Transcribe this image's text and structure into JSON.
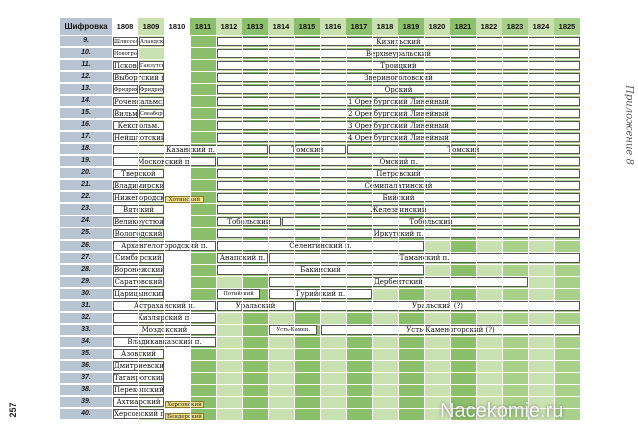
{
  "header": {
    "cipher_label": "Шифровка",
    "years": [
      "1808",
      "1809",
      "1810",
      "1811",
      "1812",
      "1813",
      "1814",
      "1815",
      "1816",
      "1817",
      "1818",
      "1819",
      "1820",
      "1821",
      "1822",
      "1823",
      "1824",
      "1825"
    ]
  },
  "colors": {
    "header_white": "#ffffff",
    "header_light": "#c9e0b0",
    "header_dark": "#8cbf6b",
    "col_light": "#c9e0b0",
    "col_mid": "#a9d08a",
    "col_dark": "#8cbf6b",
    "row_label": "#b9c4d2",
    "flag": "#f3e48a"
  },
  "year_shading": [
    "white",
    "light",
    "white",
    "dark",
    "light",
    "dark",
    "light",
    "dark",
    "light",
    "dark",
    "light",
    "dark",
    "light",
    "dark",
    "light",
    "mid",
    "light",
    "mid"
  ],
  "rows": [
    {
      "code": "9.",
      "bars": [
        {
          "text": "Шлиссельбург.",
          "from": 0,
          "to": 1,
          "small": true
        },
        {
          "text": "Аландск. п.",
          "from": 1,
          "to": 2,
          "small": true
        },
        {
          "text": "Кизильский",
          "from": 4,
          "to": 18
        }
      ]
    },
    {
      "code": "10.",
      "bars": [
        {
          "text": "Новогродский",
          "from": 0,
          "to": 1,
          "small": true
        },
        {
          "text": "Верхнеуральский",
          "from": 4,
          "to": 18
        }
      ]
    },
    {
      "code": "11.",
      "bars": [
        {
          "text": "Псковский",
          "from": 0,
          "to": 1
        },
        {
          "text": "Ганзутск.",
          "from": 1,
          "to": 2,
          "small": true
        },
        {
          "text": "Троицкий",
          "from": 4,
          "to": 18
        }
      ]
    },
    {
      "code": "12.",
      "bars": [
        {
          "text": "Выборгский п.",
          "from": 0,
          "to": 2
        },
        {
          "text": "Звериноголовский",
          "from": 4,
          "to": 18
        }
      ]
    },
    {
      "code": "13.",
      "bars": [
        {
          "text": "Фридрихсг. п.",
          "from": 0,
          "to": 1,
          "small": true
        },
        {
          "text": "Фридрих.",
          "from": 1,
          "to": 2,
          "small": true
        },
        {
          "text": "Орский",
          "from": 4,
          "to": 18
        }
      ]
    },
    {
      "code": "14.",
      "bars": [
        {
          "text": "Роченсальмский п.",
          "from": 0,
          "to": 2
        },
        {
          "text": "1 Оренбургский Линейный",
          "from": 4,
          "to": 18
        }
      ]
    },
    {
      "code": "15.",
      "bars": [
        {
          "text": "Вильманстр.",
          "from": 0,
          "to": 1
        },
        {
          "text": "Свеаборг. п.",
          "from": 1,
          "to": 2,
          "small": true
        },
        {
          "text": "2 Оренбургский Линейный",
          "from": 4,
          "to": 18
        }
      ]
    },
    {
      "code": "16.",
      "bars": [
        {
          "text": "Кексгольм.",
          "from": 0,
          "to": 2
        },
        {
          "text": "3 Оренбургский Линейный",
          "from": 4,
          "to": 18
        }
      ]
    },
    {
      "code": "17.",
      "bars": [
        {
          "text": "Нейшлотский",
          "from": 0,
          "to": 2
        },
        {
          "text": "4 Оренбургский Линейный",
          "from": 4,
          "to": 18
        }
      ]
    },
    {
      "code": "18.",
      "bars": [
        {
          "text": "Казанский п.",
          "from": 0,
          "to": 6
        },
        {
          "text": "Томский",
          "from": 6,
          "to": 9
        },
        {
          "text": "Томский",
          "from": 9,
          "to": 18
        }
      ]
    },
    {
      "code": "19.",
      "bars": [
        {
          "text": "Московский п.",
          "from": 0,
          "to": 4
        },
        {
          "text": "Омский п.",
          "from": 4,
          "to": 18
        }
      ]
    },
    {
      "code": "20.",
      "bars": [
        {
          "text": "Тверской",
          "from": 0,
          "to": 2
        },
        {
          "text": "Петровский",
          "from": 4,
          "to": 18
        }
      ]
    },
    {
      "code": "21.",
      "bars": [
        {
          "text": "Владимирский",
          "from": 0,
          "to": 2
        },
        {
          "text": "Семипалатинский",
          "from": 4,
          "to": 18
        }
      ]
    },
    {
      "code": "22.",
      "bars": [
        {
          "text": "Нижегородский",
          "from": 0,
          "to": 2
        },
        {
          "text": "Бийский",
          "from": 4,
          "to": 18
        }
      ],
      "flag": {
        "text": "Хотинский",
        "at": 2
      }
    },
    {
      "code": "23.",
      "bars": [
        {
          "text": "Вятский",
          "from": 0,
          "to": 2
        },
        {
          "text": "Железнинский",
          "from": 4,
          "to": 18
        }
      ]
    },
    {
      "code": "24.",
      "bars": [
        {
          "text": "Великоустюжский",
          "from": 0,
          "to": 2
        },
        {
          "text": "Тобольский",
          "from": 4,
          "to": 6.5
        },
        {
          "text": "Тобольский",
          "from": 6.5,
          "to": 18
        }
      ]
    },
    {
      "code": "25.",
      "bars": [
        {
          "text": "Вологодский",
          "from": 0,
          "to": 2
        },
        {
          "text": "Иркутский п.",
          "from": 4,
          "to": 18
        }
      ]
    },
    {
      "code": "26.",
      "bars": [
        {
          "text": "Архангелогородский п.",
          "from": 0,
          "to": 4
        },
        {
          "text": "Селенгинский п.",
          "from": 4,
          "to": 12
        }
      ]
    },
    {
      "code": "27.",
      "bars": [
        {
          "text": "Симбирский",
          "from": 0,
          "to": 2
        },
        {
          "text": "Анапский п.",
          "from": 4,
          "to": 6
        },
        {
          "text": "Таманский п.",
          "from": 6,
          "to": 18
        }
      ]
    },
    {
      "code": "28.",
      "bars": [
        {
          "text": "Воронежский",
          "from": 0,
          "to": 2
        },
        {
          "text": "Бакинский",
          "from": 4,
          "to": 12
        }
      ]
    },
    {
      "code": "29.",
      "bars": [
        {
          "text": "Саратовский",
          "from": 0,
          "to": 2
        },
        {
          "text": "Дербентский",
          "from": 6,
          "to": 16
        }
      ]
    },
    {
      "code": "30.",
      "bars": [
        {
          "text": "Царицынский",
          "from": 0,
          "to": 2
        },
        {
          "text": "Потийский",
          "from": 4,
          "to": 5.7,
          "small": true
        },
        {
          "text": "Гурийский п.",
          "from": 6,
          "to": 10
        }
      ]
    },
    {
      "code": "31.",
      "bars": [
        {
          "text": "Астраханский п.",
          "from": 0,
          "to": 4
        },
        {
          "text": "Уральский",
          "from": 4,
          "to": 7
        },
        {
          "text": "Уральский (?)",
          "from": 7,
          "to": 18
        }
      ]
    },
    {
      "code": "32.",
      "bars": [
        {
          "text": "Кизлярский п.",
          "from": 0,
          "to": 4
        }
      ]
    },
    {
      "code": "33.",
      "bars": [
        {
          "text": "Моздокский",
          "from": 0,
          "to": 4
        },
        {
          "text": "Усть-Камен.",
          "from": 6,
          "to": 7.9,
          "small": true
        },
        {
          "text": "Усть-Каменогорский (?)",
          "from": 8,
          "to": 18
        }
      ]
    },
    {
      "code": "34.",
      "bars": [
        {
          "text": "Владикавказский п.",
          "from": 0,
          "to": 4
        }
      ]
    },
    {
      "code": "35.",
      "bars": [
        {
          "text": "Азовский",
          "from": 0,
          "to": 2
        }
      ]
    },
    {
      "code": "36.",
      "bars": [
        {
          "text": "Дмитриевский п.",
          "from": 0,
          "to": 2
        }
      ]
    },
    {
      "code": "37.",
      "bars": [
        {
          "text": "Таганрогский",
          "from": 0,
          "to": 2
        }
      ]
    },
    {
      "code": "38.",
      "bars": [
        {
          "text": "Перекопский",
          "from": 0,
          "to": 2
        }
      ]
    },
    {
      "code": "39.",
      "bars": [
        {
          "text": "Ахтиарский",
          "from": 0,
          "to": 2
        }
      ],
      "flag": {
        "text": "Херсонский",
        "at": 2
      }
    },
    {
      "code": "40.",
      "bars": [
        {
          "text": "Херсонский п.",
          "from": 0,
          "to": 2
        }
      ],
      "flag": {
        "text": "Бендерский",
        "at": 2
      }
    }
  ],
  "side_title": "Приложение 8",
  "page_number": "257",
  "watermark": "Nacekomie.ru"
}
